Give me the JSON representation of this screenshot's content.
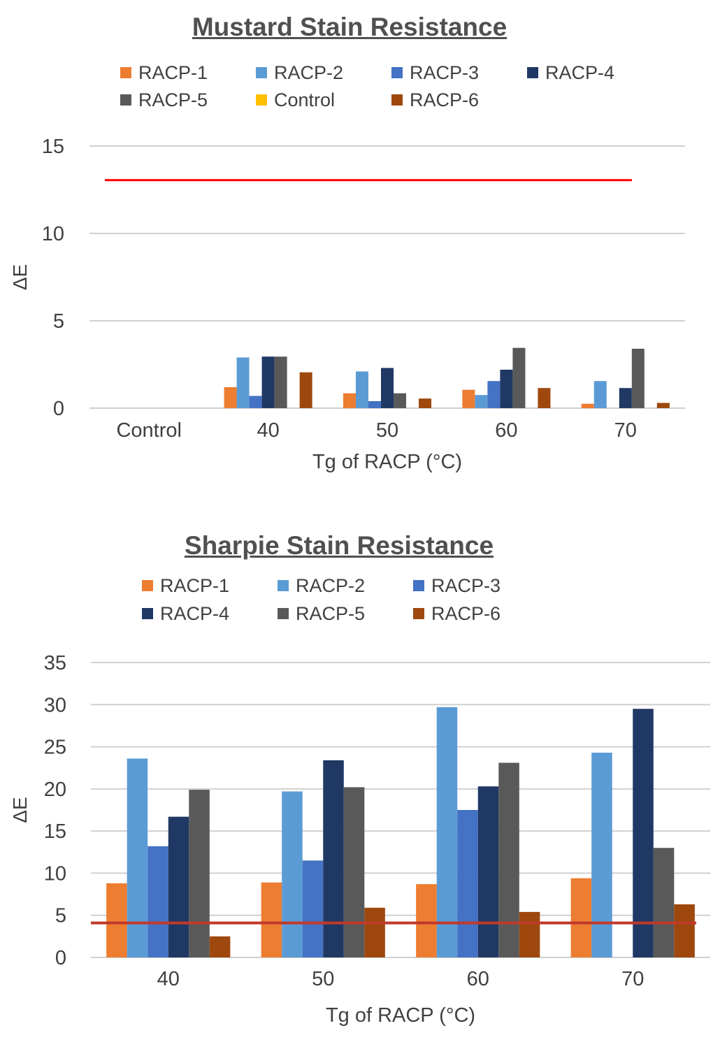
{
  "chart_data": [
    {
      "type": "bar",
      "title": "Mustard Stain Resistance",
      "xlabel": "Tg of RACP (°C)",
      "ylabel": "ΔE",
      "ylim": [
        0,
        15
      ],
      "yticks": [
        "0",
        "5",
        "10",
        "15"
      ],
      "grid": true,
      "categories": [
        "Control",
        "40",
        "50",
        "60",
        "70"
      ],
      "series": [
        {
          "name": "RACP-1",
          "color": "#ED7D31",
          "values": [
            null,
            1.2,
            0.85,
            1.05,
            0.25
          ]
        },
        {
          "name": "RACP-2",
          "color": "#5B9BD5",
          "values": [
            null,
            2.9,
            2.1,
            0.75,
            1.55
          ]
        },
        {
          "name": "RACP-3",
          "color": "#4472C4",
          "values": [
            null,
            0.7,
            0.4,
            1.55,
            null
          ]
        },
        {
          "name": "RACP-4",
          "color": "#203864",
          "values": [
            null,
            2.95,
            2.3,
            2.2,
            1.15
          ]
        },
        {
          "name": "RACP-5",
          "color": "#595959",
          "values": [
            null,
            2.95,
            0.85,
            3.45,
            3.4
          ]
        },
        {
          "name": "Control",
          "color": "#FFC000",
          "values": [
            null,
            null,
            null,
            null,
            null
          ]
        },
        {
          "name": "RACP-6",
          "color": "#9E480E",
          "values": [
            null,
            2.05,
            0.55,
            1.15,
            0.3
          ]
        }
      ],
      "reference_line": {
        "value": 13.05,
        "color": "#FF0000"
      }
    },
    {
      "type": "bar",
      "title": "Sharpie Stain Resistance",
      "xlabel": "Tg of RACP (°C)",
      "ylabel": "ΔE",
      "ylim": [
        0,
        35
      ],
      "yticks": [
        "0",
        "5",
        "10",
        "15",
        "20",
        "25",
        "30",
        "35"
      ],
      "grid": true,
      "categories": [
        "40",
        "50",
        "60",
        "70"
      ],
      "series": [
        {
          "name": "RACP-1",
          "color": "#ED7D31",
          "values": [
            8.8,
            8.9,
            8.7,
            9.4
          ]
        },
        {
          "name": "RACP-2",
          "color": "#5B9BD5",
          "values": [
            23.6,
            19.7,
            29.7,
            24.3
          ]
        },
        {
          "name": "RACP-3",
          "color": "#4472C4",
          "values": [
            13.2,
            11.5,
            17.5,
            null
          ]
        },
        {
          "name": "RACP-4",
          "color": "#203864",
          "values": [
            16.7,
            23.4,
            20.3,
            29.5
          ]
        },
        {
          "name": "RACP-5",
          "color": "#595959",
          "values": [
            19.9,
            20.2,
            23.1,
            13.0
          ]
        },
        {
          "name": "RACP-6",
          "color": "#9E480E",
          "values": [
            2.5,
            5.9,
            5.4,
            6.3
          ]
        }
      ],
      "reference_line": {
        "value": 4.1,
        "color": "#C0392B"
      }
    }
  ]
}
